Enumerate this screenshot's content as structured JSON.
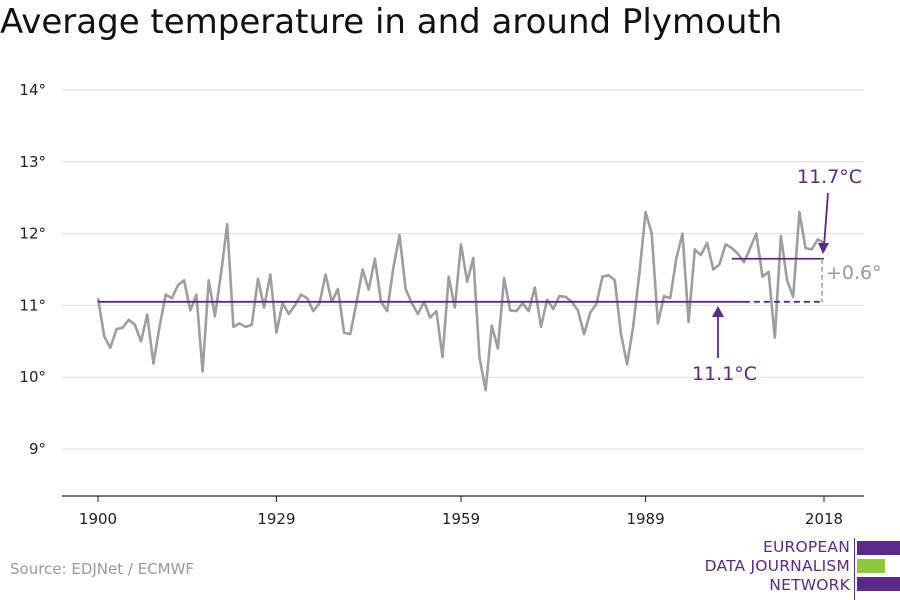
{
  "title": "Average temperature in and around Plymouth",
  "source": "Source: EDJNet / ECMWF",
  "logo": {
    "lines": [
      "EUROPEAN",
      "DATA JOURNALISM",
      "NETWORK"
    ],
    "colors": [
      "#5b2a86",
      "#8dc63f",
      "#5b2a86"
    ]
  },
  "colors": {
    "series": "#9e9e9e",
    "accent": "#5b2a86",
    "grid": "#dddddd"
  },
  "chart_data": {
    "type": "line",
    "title": "Average temperature in and around Plymouth",
    "xlabel": "",
    "ylabel": "",
    "xlim": [
      1900,
      2018
    ],
    "ylim": [
      8.5,
      14.5
    ],
    "x_ticks": [
      1900,
      1929,
      1959,
      1989,
      2018
    ],
    "x_tick_labels": [
      "1900",
      "1929",
      "1959",
      "1989",
      "2018"
    ],
    "y_ticks": [
      9,
      10,
      11,
      12,
      13,
      14
    ],
    "y_tick_labels": [
      "9°",
      "10°",
      "11°",
      "12°",
      "13°",
      "14°"
    ],
    "grid": "horizontal",
    "series": [
      {
        "x": [
          1900,
          1901,
          1902,
          1903,
          1904,
          1905,
          1906,
          1907,
          1908,
          1909,
          1910,
          1911,
          1912,
          1913,
          1914,
          1915,
          1916,
          1917,
          1918,
          1919,
          1920,
          1921,
          1922,
          1923,
          1924,
          1925,
          1926,
          1927,
          1928,
          1929,
          1930,
          1931,
          1932,
          1933,
          1934,
          1935,
          1936,
          1937,
          1938,
          1939,
          1940,
          1941,
          1942,
          1943,
          1944,
          1945,
          1946,
          1947,
          1948,
          1949,
          1950,
          1951,
          1952,
          1953,
          1954,
          1955,
          1956,
          1957,
          1958,
          1959,
          1960,
          1961,
          1962,
          1963,
          1964,
          1965,
          1966,
          1967,
          1968,
          1969,
          1970,
          1971,
          1972,
          1973,
          1974,
          1975,
          1976,
          1977,
          1978,
          1979,
          1980,
          1981,
          1982,
          1983,
          1984,
          1985,
          1986,
          1987,
          1988,
          1989,
          1990,
          1991,
          1992,
          1993,
          1994,
          1995,
          1996,
          1997,
          1998,
          1999,
          2000,
          2001,
          2002,
          2003,
          2004,
          2005,
          2006,
          2007,
          2008,
          2009,
          2010,
          2011,
          2012,
          2013,
          2014,
          2015,
          2016,
          2017,
          2018
        ],
        "values": [
          11.1,
          10.57,
          10.41,
          10.67,
          10.69,
          10.8,
          10.73,
          10.5,
          10.87,
          10.19,
          10.7,
          11.15,
          11.1,
          11.28,
          11.35,
          10.93,
          11.15,
          10.08,
          11.35,
          10.85,
          11.45,
          12.13,
          10.7,
          10.75,
          10.7,
          10.73,
          11.37,
          10.97,
          11.43,
          10.62,
          11.03,
          10.88,
          11.0,
          11.15,
          11.1,
          10.92,
          11.03,
          11.43,
          11.05,
          11.23,
          10.62,
          10.6,
          11.03,
          11.5,
          11.22,
          11.65,
          11.05,
          10.92,
          11.52,
          11.98,
          11.23,
          11.03,
          10.88,
          11.05,
          10.83,
          10.92,
          10.28,
          11.4,
          10.97,
          11.85,
          11.33,
          11.66,
          10.27,
          9.82,
          10.72,
          10.4,
          11.38,
          10.93,
          10.92,
          11.03,
          10.92,
          11.25,
          10.7,
          11.08,
          10.95,
          11.13,
          11.12,
          11.05,
          10.93,
          10.6,
          10.9,
          11.02,
          11.4,
          11.42,
          11.35,
          10.6,
          10.18,
          10.72,
          11.45,
          12.3,
          12.0,
          10.75,
          11.13,
          11.1,
          11.65,
          12.0,
          10.77,
          11.78,
          11.7,
          11.87,
          11.5,
          11.57,
          11.85,
          11.8,
          11.72,
          11.6,
          11.8,
          12.0,
          11.4,
          11.47,
          10.55,
          11.97,
          11.35,
          11.12,
          12.3,
          11.8,
          11.78,
          11.92,
          11.87
        ]
      }
    ],
    "reference_lines": [
      {
        "label": "11.1°C",
        "value": 11.05,
        "from": 1900,
        "to": 2018,
        "solid_to": 2004
      },
      {
        "label": "11.7°C",
        "value": 11.65,
        "from": 2004,
        "to": 2018
      }
    ],
    "annotations": [
      "11.7°C",
      "11.1°C",
      "+0.6°"
    ]
  }
}
